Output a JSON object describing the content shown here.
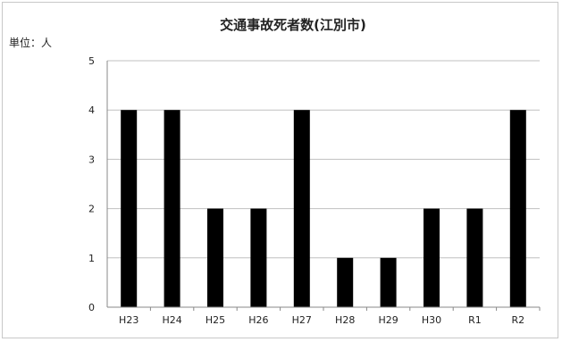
{
  "chart_data": {
    "type": "bar",
    "title": "交通事故死者数(江別市)",
    "unit_label": "単位：人",
    "categories": [
      "H23",
      "H24",
      "H25",
      "H26",
      "H27",
      "H28",
      "H29",
      "H30",
      "R1",
      "R2"
    ],
    "values": [
      4,
      4,
      2,
      2,
      4,
      1,
      1,
      2,
      2,
      4
    ],
    "ylim": [
      0,
      5
    ],
    "yticks": [
      0,
      1,
      2,
      3,
      4,
      5
    ],
    "grid": true,
    "legend": "none",
    "bar_color": "#000000",
    "grid_color": "#c0c0c0",
    "axis_color": "#888888"
  }
}
